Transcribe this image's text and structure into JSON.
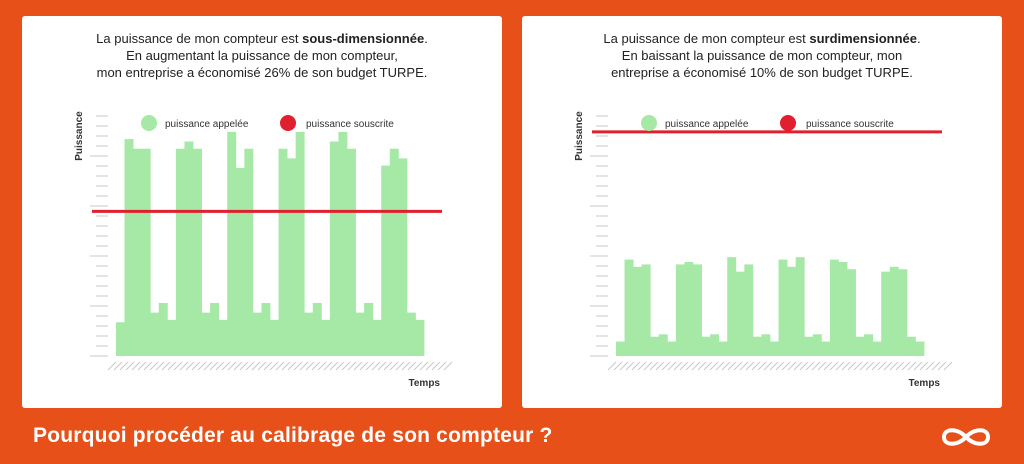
{
  "footer": {
    "title": "Pourquoi procéder au calibrage de son compteur ?"
  },
  "colors": {
    "background": "#E8501A",
    "bar": "#A6E8A6",
    "line": "#E0202E"
  },
  "chart_data": [
    {
      "type": "bar",
      "caption": {
        "line1_pre": "La puissance de mon compteur est ",
        "line1_bold": "sous-dimensionnée",
        "line1_post": ".",
        "line2": "En augmentant la puissance de mon compteur,",
        "line3": "mon entreprise a économisé 26% de son budget TURPE."
      },
      "ylabel": "Puissance",
      "xlabel": "Temps",
      "legend": [
        "puissance appelée",
        "puissance souscrite"
      ],
      "legend_position": "top",
      "ylim": [
        0,
        100
      ],
      "values": [
        14,
        90,
        86,
        86,
        18,
        22,
        15,
        86,
        89,
        86,
        18,
        22,
        15,
        93,
        78,
        86,
        18,
        22,
        15,
        86,
        82,
        93,
        18,
        22,
        15,
        89,
        93,
        86,
        18,
        22,
        15,
        79,
        86,
        82,
        18,
        15
      ],
      "subscribed_power": 60
    },
    {
      "type": "bar",
      "caption": {
        "line1_pre": "La puissance de mon compteur est ",
        "line1_bold": "surdimensionnée",
        "line1_post": ".",
        "line2": "En baissant la puissance de mon compteur, mon",
        "line3": "entreprise a économisé 10% de son budget TURPE."
      },
      "ylabel": "Puissance",
      "xlabel": "Temps",
      "legend": [
        "puissance appelée",
        "puissance souscrite"
      ],
      "legend_position": "top",
      "ylim": [
        0,
        100
      ],
      "values": [
        6,
        40,
        37,
        38,
        8,
        9,
        6,
        38,
        39,
        38,
        8,
        9,
        6,
        41,
        35,
        38,
        8,
        9,
        6,
        40,
        37,
        41,
        8,
        9,
        6,
        40,
        39,
        36,
        8,
        9,
        6,
        35,
        37,
        36,
        8,
        6
      ],
      "subscribed_power": 93
    }
  ]
}
